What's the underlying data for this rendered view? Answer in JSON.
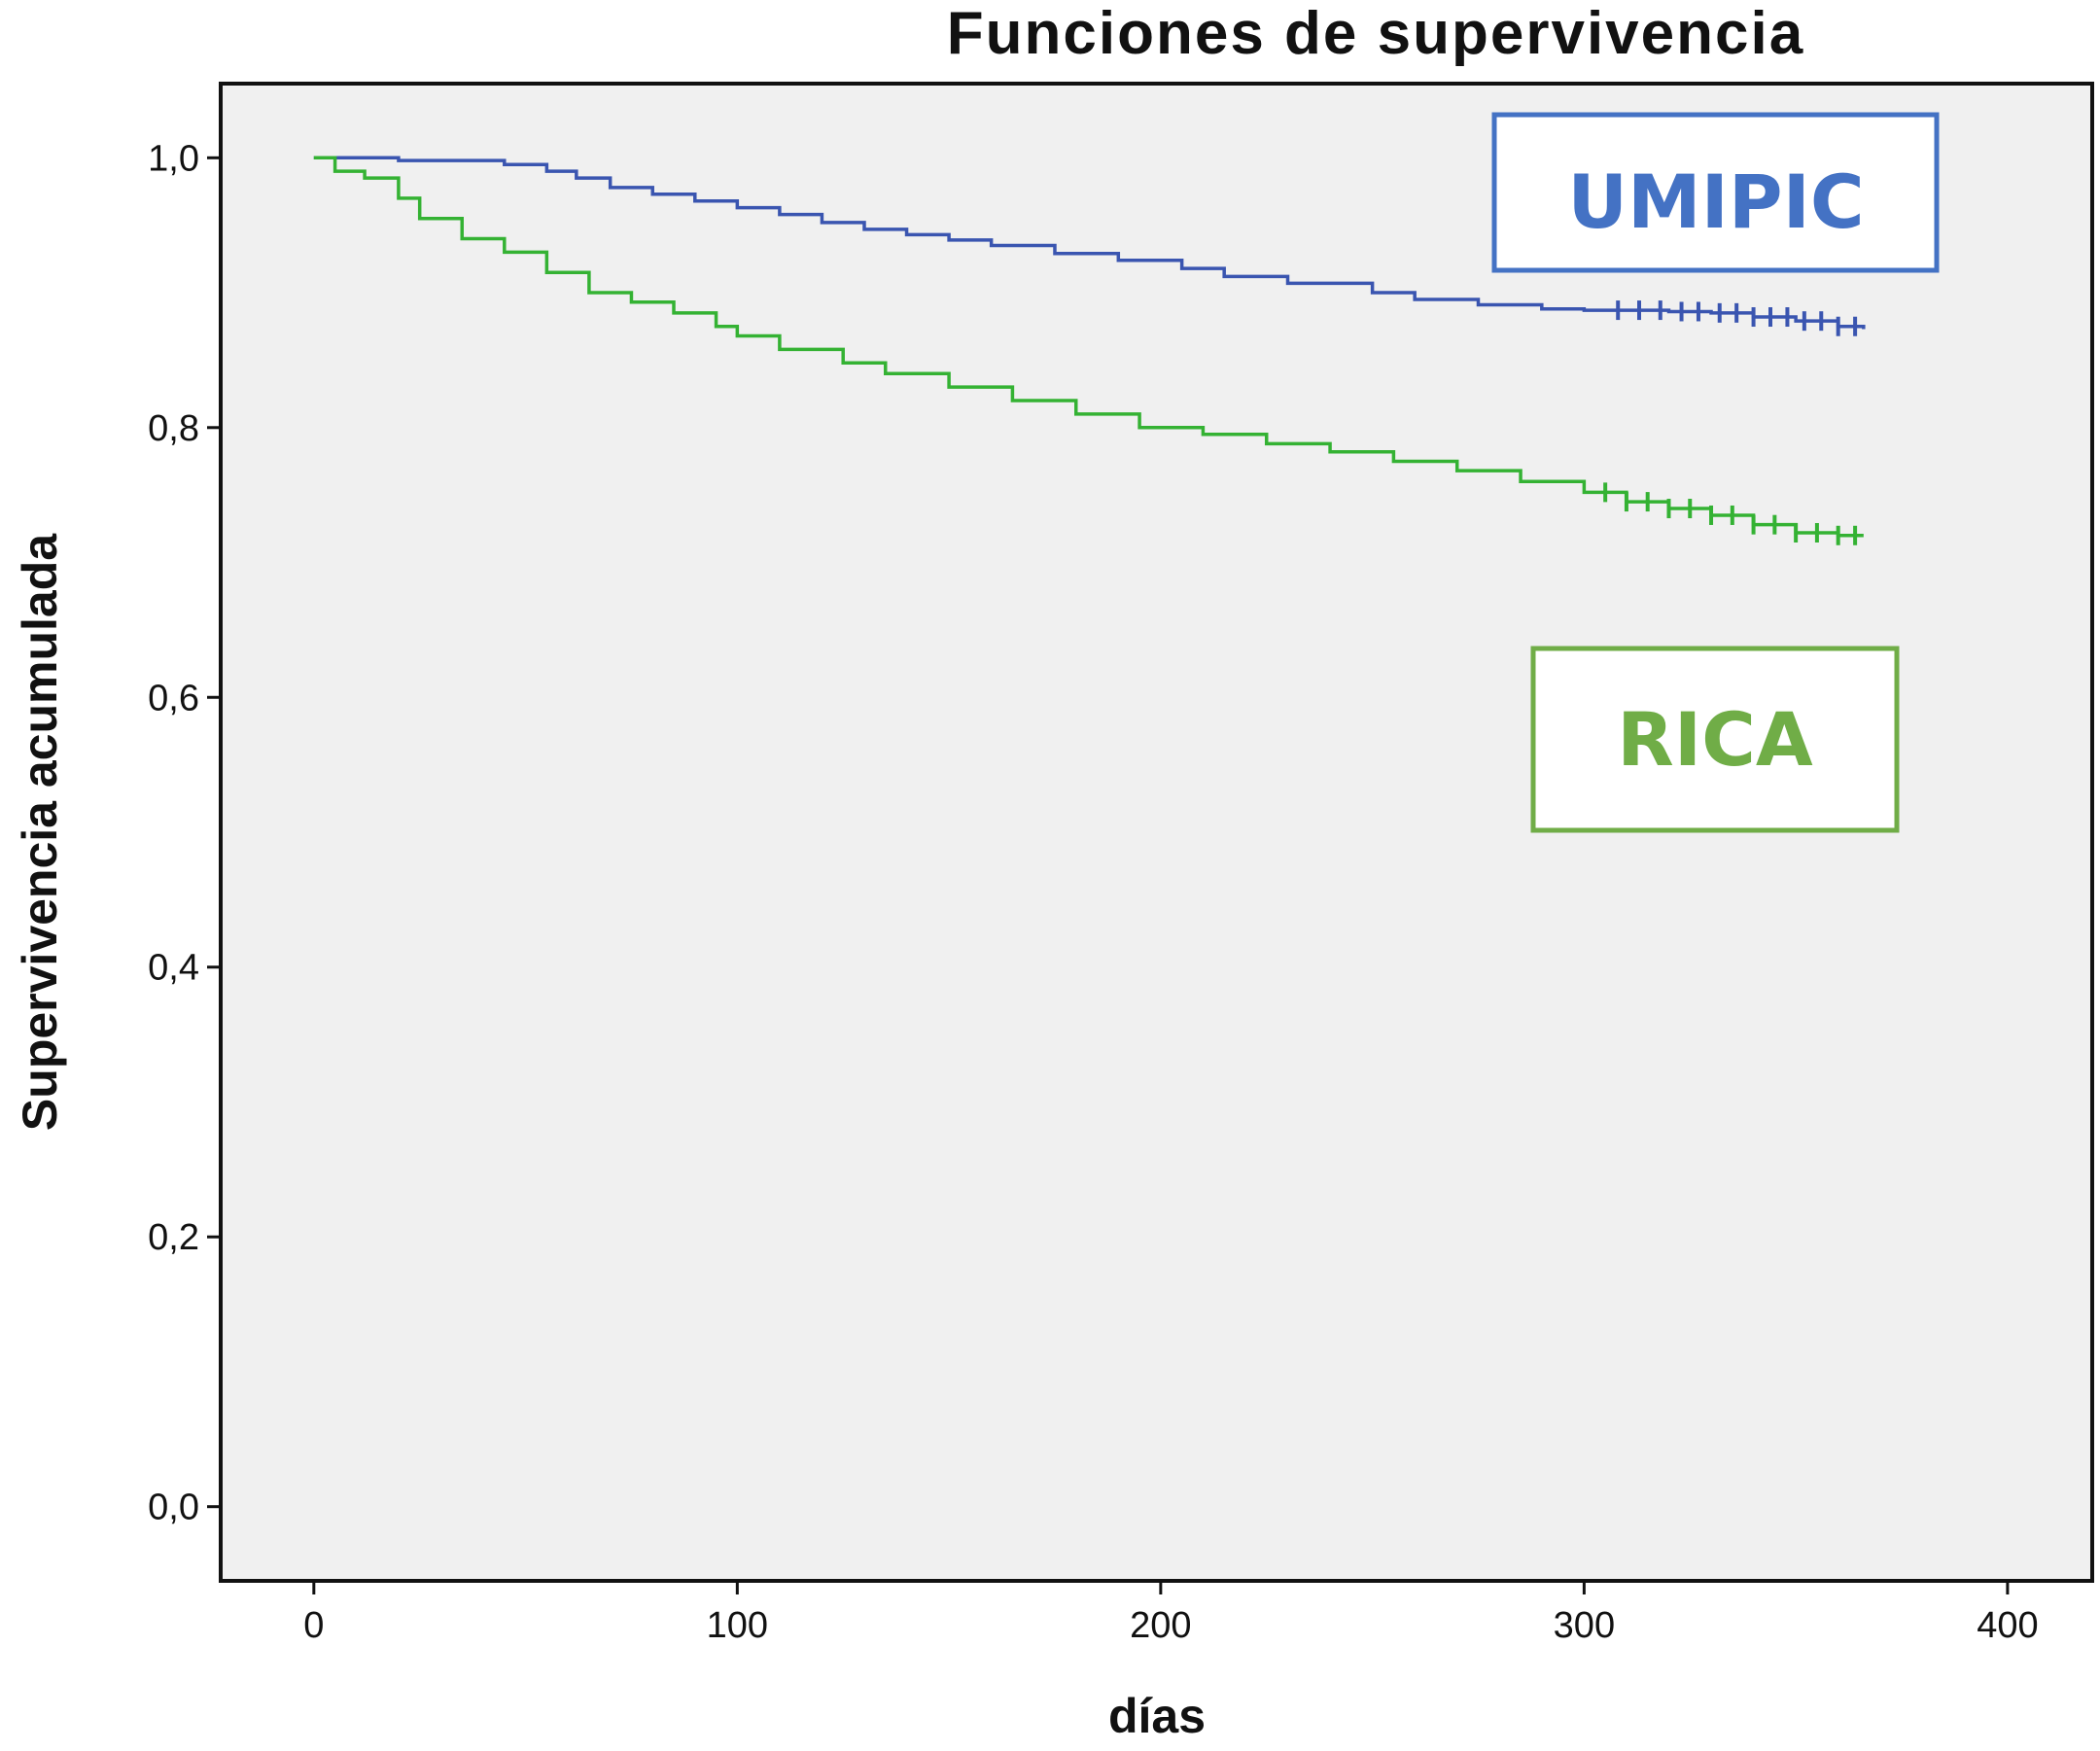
{
  "chart_data": {
    "type": "line",
    "title": "Funciones de supervivencia",
    "xlabel": "días",
    "ylabel": "Supervivencia acumulada",
    "xlim": [
      -22,
      420
    ],
    "ylim": [
      -0.055,
      1.055
    ],
    "x_ticks": [
      0,
      100,
      200,
      300,
      400
    ],
    "x_tick_labels": [
      "0",
      "100",
      "200",
      "300",
      "400"
    ],
    "y_ticks": [
      0.0,
      0.2,
      0.4,
      0.6,
      0.8,
      1.0
    ],
    "y_tick_labels": [
      "0,0",
      "0,2",
      "0,4",
      "0,6",
      "0,8",
      "1,0"
    ],
    "grid": false,
    "background": "#f0f0f0",
    "series": [
      {
        "name": "UMIPIC",
        "color": "#3a55b0",
        "step": true,
        "x": [
          0,
          20,
          45,
          55,
          62,
          70,
          80,
          90,
          100,
          110,
          120,
          130,
          140,
          150,
          160,
          175,
          190,
          205,
          215,
          230,
          250,
          260,
          275,
          290,
          300,
          310,
          320,
          330,
          340,
          350,
          360,
          366
        ],
        "y": [
          1.0,
          0.998,
          0.995,
          0.99,
          0.985,
          0.978,
          0.973,
          0.968,
          0.963,
          0.958,
          0.952,
          0.947,
          0.943,
          0.939,
          0.935,
          0.929,
          0.924,
          0.918,
          0.912,
          0.907,
          0.9,
          0.895,
          0.891,
          0.888,
          0.887,
          0.887,
          0.886,
          0.885,
          0.882,
          0.879,
          0.875,
          0.873
        ],
        "censored_x": [
          308,
          313,
          318,
          323,
          327,
          332,
          336,
          340,
          344,
          348,
          352,
          356,
          360,
          364
        ]
      },
      {
        "name": "RICA",
        "color": "#34b233",
        "step": true,
        "x": [
          0,
          5,
          12,
          20,
          25,
          35,
          45,
          55,
          65,
          75,
          85,
          95,
          100,
          110,
          125,
          135,
          150,
          165,
          180,
          195,
          210,
          225,
          240,
          255,
          270,
          285,
          300,
          310,
          320,
          330,
          340,
          350,
          360,
          366
        ],
        "y": [
          1.0,
          0.99,
          0.985,
          0.97,
          0.955,
          0.94,
          0.93,
          0.915,
          0.9,
          0.893,
          0.885,
          0.875,
          0.868,
          0.858,
          0.848,
          0.84,
          0.83,
          0.82,
          0.81,
          0.8,
          0.795,
          0.788,
          0.782,
          0.775,
          0.768,
          0.76,
          0.752,
          0.745,
          0.74,
          0.735,
          0.728,
          0.722,
          0.72,
          0.72
        ],
        "censored_x": [
          305,
          310,
          315,
          320,
          325,
          330,
          335,
          340,
          345,
          350,
          355,
          360,
          364
        ]
      }
    ]
  },
  "legend_boxes": [
    {
      "label": "UMIPIC",
      "color": "#4472c4"
    },
    {
      "label": "RICA",
      "color": "#70ad47"
    }
  ]
}
